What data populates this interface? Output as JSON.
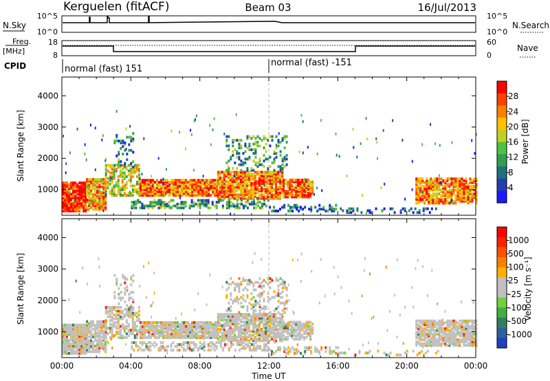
{
  "header": {
    "title": "Kerguelen (fitACF)",
    "beam": "Beam 03",
    "date": "16/Jul/2013"
  },
  "sky_panel": {
    "left_label": "N.Sky",
    "right_label": "N.Search",
    "left_ticks": [
      "10^5",
      "10^0"
    ],
    "right_ticks": [
      "10^5",
      "10^0"
    ]
  },
  "freq_panel": {
    "left_label_1": "Freq.",
    "left_label_2": "[MHz]",
    "right_label": "Nave",
    "left_ticks": [
      "18",
      "8"
    ],
    "right_ticks": [
      "60",
      "0"
    ]
  },
  "cpid": {
    "label": "CPID",
    "modes": [
      {
        "text": "normal (fast) 151",
        "start_hour": 0
      },
      {
        "text": "normal (fast) -151",
        "start_hour": 12
      }
    ]
  },
  "time_axis": {
    "label": "Time UT",
    "ticks": [
      "00:00",
      "04:00",
      "08:00",
      "12:00",
      "16:00",
      "20:00",
      "00:00"
    ]
  },
  "chart_data": [
    {
      "type": "heatmap",
      "name": "power-panel",
      "ylabel": "Slant Range [km]",
      "yticks": [
        "1000",
        "2000",
        "3000",
        "4000"
      ],
      "ylim": [
        180,
        4600
      ],
      "xlim": [
        0,
        24
      ],
      "colorbar": {
        "label": "Power [dB]",
        "ticks": [
          "4",
          "8",
          "12",
          "16",
          "20",
          "24",
          "28"
        ],
        "colors": [
          "#1a1aff",
          "#2040b0",
          "#207080",
          "#30a050",
          "#50c040",
          "#c0d020",
          "#ffc000",
          "#ff8000",
          "#ff4000",
          "#ff0000"
        ]
      }
    },
    {
      "type": "heatmap",
      "name": "velocity-panel",
      "ylabel": "Slant Range [km]",
      "yticks": [
        "1000",
        "2000",
        "3000",
        "4000"
      ],
      "ylim": [
        180,
        4600
      ],
      "xlim": [
        0,
        24
      ],
      "colorbar": {
        "label": "Velocity [m s⁻¹]",
        "ticks": [
          "1000",
          "500",
          "100",
          "25",
          "-25",
          "-100",
          "-500",
          "-1000"
        ],
        "colors": [
          "#2040c0",
          "#3060a0",
          "#308060",
          "#40b040",
          "#70d040",
          "#c0c0c0",
          "#c0c0c0",
          "#ffb000",
          "#ff8000",
          "#ff5000",
          "#ff2000",
          "#ff0000"
        ]
      }
    }
  ]
}
